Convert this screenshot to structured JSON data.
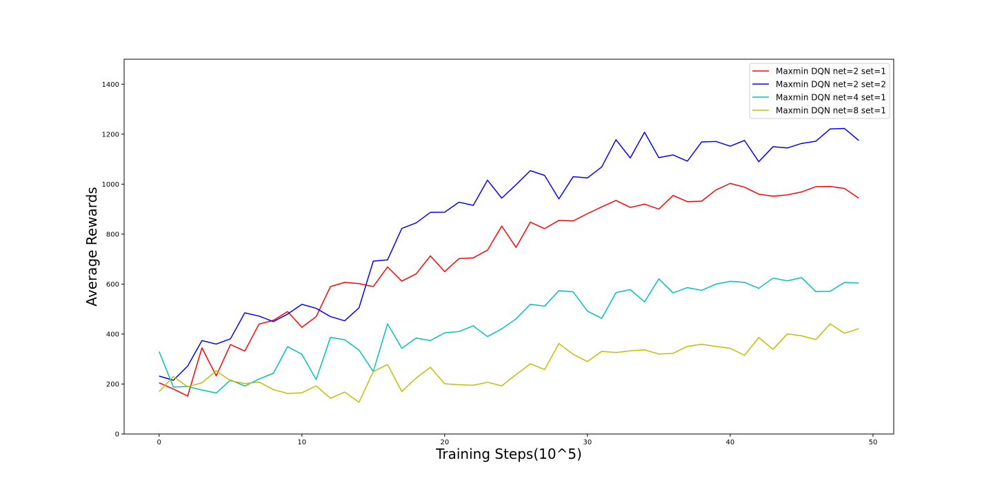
{
  "chart_data": {
    "type": "line",
    "title": "",
    "xlabel": "Training Steps(10^5)",
    "ylabel": "Average Rewards",
    "xlim": [
      -2.45,
      51.45
    ],
    "ylim": [
      0,
      1500
    ],
    "x_ticks": [
      0,
      10,
      20,
      30,
      40,
      50
    ],
    "y_ticks": [
      0,
      200,
      400,
      600,
      800,
      1000,
      1200,
      1400
    ],
    "grid": false,
    "legend_position": "top-right",
    "x": [
      0,
      1,
      2,
      3,
      4,
      5,
      6,
      7,
      8,
      9,
      10,
      11,
      12,
      13,
      14,
      15,
      16,
      17,
      18,
      19,
      20,
      21,
      22,
      23,
      24,
      25,
      26,
      27,
      28,
      29,
      30,
      31,
      32,
      33,
      34,
      35,
      36,
      37,
      38,
      39,
      40,
      41,
      42,
      43,
      44,
      45,
      46,
      47,
      48,
      49
    ],
    "series": [
      {
        "name": "Maxmin DQN net=2 set=1",
        "color": "#ff0000",
        "values": [
          205,
          180,
          152,
          345,
          233,
          358,
          332,
          440,
          455,
          490,
          427,
          470,
          590,
          607,
          602,
          590,
          669,
          612,
          641,
          713,
          650,
          702,
          705,
          736,
          832,
          747,
          848,
          822,
          855,
          853,
          882,
          909,
          935,
          907,
          920,
          900,
          955,
          930,
          932,
          977,
          1003,
          988,
          960,
          952,
          957,
          969,
          990,
          991,
          983,
          944
        ]
      },
      {
        "name": "Maxmin DQN net=2 set=2",
        "color": "#0000ff",
        "values": [
          232,
          215,
          272,
          374,
          360,
          381,
          485,
          472,
          450,
          480,
          519,
          503,
          470,
          453,
          505,
          692,
          697,
          823,
          845,
          887,
          888,
          928,
          915,
          1016,
          944,
          998,
          1054,
          1035,
          941,
          1030,
          1025,
          1069,
          1178,
          1105,
          1208,
          1106,
          1117,
          1092,
          1169,
          1171,
          1152,
          1175,
          1090,
          1150,
          1145,
          1163,
          1172,
          1221,
          1223,
          1175
        ]
      },
      {
        "name": "Maxmin DQN net=4 set=1",
        "color": "#00bfbf",
        "values": [
          330,
          188,
          190,
          176,
          164,
          216,
          192,
          220,
          243,
          350,
          319,
          218,
          387,
          377,
          336,
          250,
          441,
          343,
          384,
          374,
          405,
          410,
          433,
          390,
          421,
          461,
          519,
          512,
          574,
          569,
          492,
          463,
          566,
          578,
          529,
          621,
          565,
          586,
          575,
          600,
          611,
          607,
          583,
          624,
          613,
          626,
          570,
          571,
          607,
          604
        ]
      },
      {
        "name": "Maxmin DQN net=8 set=1",
        "color": "#bfbf00",
        "values": [
          170,
          230,
          189,
          205,
          253,
          213,
          202,
          208,
          178,
          162,
          165,
          193,
          143,
          168,
          127,
          250,
          278,
          170,
          224,
          267,
          201,
          197,
          195,
          207,
          193,
          238,
          281,
          258,
          362,
          319,
          290,
          331,
          326,
          333,
          337,
          320,
          323,
          351,
          359,
          351,
          343,
          315,
          386,
          339,
          401,
          393,
          378,
          441,
          403,
          422
        ]
      }
    ]
  }
}
